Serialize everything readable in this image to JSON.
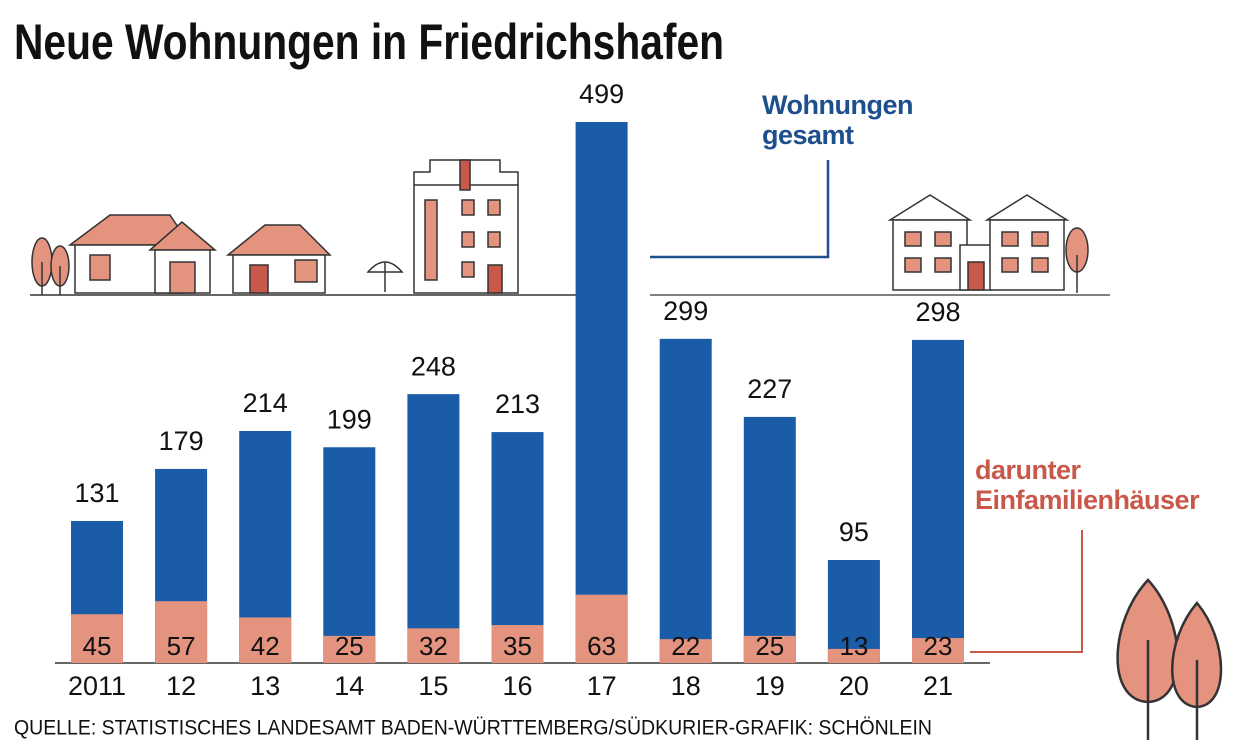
{
  "chart_data": {
    "type": "bar",
    "title": "Neue Wohnungen in Friedrichshafen",
    "categories": [
      "2011",
      "12",
      "13",
      "14",
      "15",
      "16",
      "17",
      "18",
      "19",
      "20",
      "21"
    ],
    "series": [
      {
        "name": "Wohnungen gesamt",
        "color": "#1b5ca8",
        "values": [
          131,
          179,
          214,
          199,
          248,
          213,
          499,
          299,
          227,
          95,
          298
        ]
      },
      {
        "name": "darunter Einfamilienhäuser",
        "color": "#e4937f",
        "values": [
          45,
          57,
          42,
          25,
          32,
          35,
          63,
          22,
          25,
          13,
          23
        ]
      }
    ],
    "source": "QUELLE: STATISTISCHES LANDESAMT BADEN-WÜRTTEMBERG/SÜDKURIER-GRAFIK: SCHÖNLEIN"
  }
}
